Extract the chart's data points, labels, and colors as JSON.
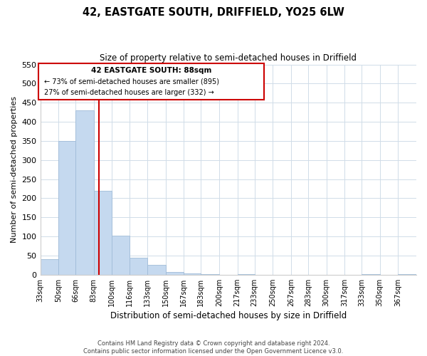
{
  "title": "42, EASTGATE SOUTH, DRIFFIELD, YO25 6LW",
  "subtitle": "Size of property relative to semi-detached houses in Driffield",
  "xlabel": "Distribution of semi-detached houses by size in Driffield",
  "ylabel": "Number of semi-detached properties",
  "footer_line1": "Contains HM Land Registry data © Crown copyright and database right 2024.",
  "footer_line2": "Contains public sector information licensed under the Open Government Licence v3.0.",
  "bin_labels": [
    "33sqm",
    "50sqm",
    "66sqm",
    "83sqm",
    "100sqm",
    "116sqm",
    "133sqm",
    "150sqm",
    "167sqm",
    "183sqm",
    "200sqm",
    "217sqm",
    "233sqm",
    "250sqm",
    "267sqm",
    "283sqm",
    "300sqm",
    "317sqm",
    "333sqm",
    "350sqm",
    "367sqm"
  ],
  "bar_values": [
    40,
    350,
    430,
    220,
    102,
    44,
    26,
    8,
    3,
    2,
    0,
    2,
    0,
    0,
    0,
    0,
    0,
    0,
    1,
    0,
    2
  ],
  "bar_color": "#c5d9ef",
  "bar_edgecolor": "#a0bcd8",
  "property_line_x": 88,
  "property_line_color": "#cc0000",
  "ylim": [
    0,
    550
  ],
  "yticks": [
    0,
    50,
    100,
    150,
    200,
    250,
    300,
    350,
    400,
    450,
    500,
    550
  ],
  "annotation_title": "42 EASTGATE SOUTH: 88sqm",
  "annotation_line1": "← 73% of semi-detached houses are smaller (895)",
  "annotation_line2": "27% of semi-detached houses are larger (332) →",
  "annotation_box_color": "#cc0000",
  "bin_edges": [
    33,
    50,
    66,
    83,
    100,
    116,
    133,
    150,
    167,
    183,
    200,
    217,
    233,
    250,
    267,
    283,
    300,
    317,
    333,
    350,
    367,
    384
  ],
  "grid_color": "#d0dce8",
  "figsize": [
    6.0,
    5.0
  ],
  "dpi": 100
}
